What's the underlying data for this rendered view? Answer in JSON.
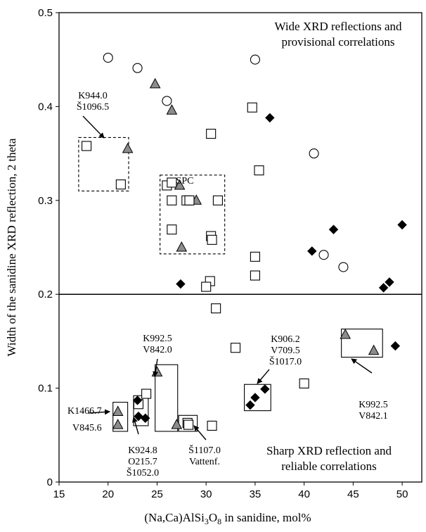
{
  "chart_data": {
    "type": "scatter",
    "xlabel_parts": [
      "(Na,Ca)AlSi",
      "3",
      "O",
      "8",
      " in sanidine, mol%"
    ],
    "ylabel": "Width of the sanidine XRD reflection, 2 theta",
    "xlim": [
      15,
      52
    ],
    "ylim": [
      0,
      0.5
    ],
    "x_ticks": [
      15,
      20,
      25,
      30,
      35,
      40,
      45,
      50
    ],
    "y_ticks": [
      0,
      0.1,
      0.2,
      0.3,
      0.4,
      0.5
    ],
    "y_tick_labels": [
      "0",
      "0.1",
      "0.2",
      "0.3",
      "0.4",
      "0.5"
    ],
    "threshold_line_y": 0.2,
    "series": [
      {
        "marker": "circle",
        "points": [
          [
            20,
            0.452
          ],
          [
            23,
            0.441
          ],
          [
            26,
            0.406
          ],
          [
            35,
            0.45
          ],
          [
            41,
            0.35
          ],
          [
            42,
            0.242
          ],
          [
            44,
            0.229
          ]
        ]
      },
      {
        "marker": "triangle",
        "points": [
          [
            24.8,
            0.424
          ],
          [
            26.5,
            0.396
          ],
          [
            22,
            0.355
          ],
          [
            27.3,
            0.316
          ],
          [
            29,
            0.3
          ],
          [
            27.5,
            0.25
          ],
          [
            25,
            0.117
          ],
          [
            21,
            0.075
          ],
          [
            21,
            0.061
          ],
          [
            27,
            0.061
          ],
          [
            44.2,
            0.157
          ],
          [
            47.1,
            0.14
          ]
        ]
      },
      {
        "marker": "square",
        "points": [
          [
            34.7,
            0.399
          ],
          [
            30.5,
            0.371
          ],
          [
            35.4,
            0.332
          ],
          [
            17.8,
            0.358
          ],
          [
            21.3,
            0.317
          ],
          [
            26,
            0.316
          ],
          [
            26.5,
            0.319
          ],
          [
            26.5,
            0.3
          ],
          [
            28,
            0.3
          ],
          [
            28.3,
            0.3
          ],
          [
            31.2,
            0.3
          ],
          [
            26.5,
            0.269
          ],
          [
            30.5,
            0.262
          ],
          [
            30.6,
            0.258
          ],
          [
            35,
            0.24
          ],
          [
            35,
            0.22
          ],
          [
            30.4,
            0.214
          ],
          [
            30,
            0.208
          ],
          [
            31,
            0.185
          ],
          [
            33,
            0.143
          ],
          [
            40,
            0.105
          ],
          [
            23.9,
            0.094
          ],
          [
            23.1,
            0.083
          ],
          [
            28.1,
            0.063
          ],
          [
            28.2,
            0.061
          ],
          [
            30.6,
            0.06
          ]
        ]
      },
      {
        "marker": "diamond",
        "points": [
          [
            36.5,
            0.388
          ],
          [
            27.4,
            0.211
          ],
          [
            40.8,
            0.246
          ],
          [
            43,
            0.269
          ],
          [
            50,
            0.274
          ],
          [
            48.1,
            0.207
          ],
          [
            48.7,
            0.213
          ],
          [
            49.3,
            0.145
          ],
          [
            23,
            0.087
          ],
          [
            23.1,
            0.07
          ],
          [
            23.8,
            0.068
          ],
          [
            34.5,
            0.082
          ],
          [
            35,
            0.09
          ],
          [
            36,
            0.099
          ]
        ]
      }
    ],
    "boxes": [
      {
        "style": "dashed",
        "x0": 17,
        "x1": 22.1,
        "y0": 0.31,
        "y1": 0.367
      },
      {
        "style": "dashed",
        "x0": 25.3,
        "x1": 31.9,
        "y0": 0.243,
        "y1": 0.327
      },
      {
        "style": "solid",
        "x0": 20.5,
        "x1": 22,
        "y0": 0.054,
        "y1": 0.085
      },
      {
        "style": "solid",
        "x0": 22.6,
        "x1": 24.1,
        "y0": 0.06,
        "y1": 0.092
      },
      {
        "style": "solid",
        "x0": 24.8,
        "x1": 27.1,
        "y0": 0.054,
        "y1": 0.125
      },
      {
        "style": "solid",
        "x0": 27.2,
        "x1": 29.1,
        "y0": 0.054,
        "y1": 0.071
      },
      {
        "style": "solid",
        "x0": 33.9,
        "x1": 36.6,
        "y0": 0.076,
        "y1": 0.104
      },
      {
        "style": "solid",
        "x0": 43.8,
        "x1": 48,
        "y0": 0.133,
        "y1": 0.163
      }
    ],
    "annotations": [
      {
        "lines": [
          "K944.0",
          "Š1096.5"
        ]
      },
      {
        "lines": [
          "SPC"
        ]
      },
      {
        "lines": [
          "K992.5",
          "V842.0"
        ]
      },
      {
        "lines": [
          "K906.2",
          "V709.5",
          "Š1017.0"
        ]
      },
      {
        "lines": [
          "K992.5",
          "V842.1"
        ]
      },
      {
        "lines": [
          "K1466.7"
        ]
      },
      {
        "lines": [
          "V845.6"
        ]
      },
      {
        "lines": [
          "K924.8",
          "O215.7",
          "Š1052.0"
        ]
      },
      {
        "lines": [
          "Š1107.0",
          "Vattenf."
        ]
      },
      {
        "lines": [
          "Wide XRD reflections and",
          "provisional correlations"
        ]
      },
      {
        "lines": [
          "Sharp XRD reflection and",
          "reliable correlations"
        ]
      }
    ]
  }
}
